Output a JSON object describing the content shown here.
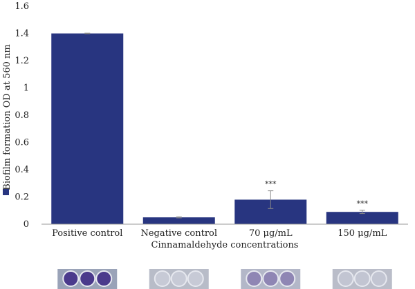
{
  "chart_data": {
    "type": "bar",
    "categories": [
      "Positive control",
      "Negative control",
      "70 μg/mL",
      "150 μg/mL"
    ],
    "values": [
      1.4,
      0.05,
      0.18,
      0.09
    ],
    "errors": [
      0.002,
      0.004,
      0.065,
      0.012
    ],
    "annotations": [
      "",
      "",
      "***",
      "***"
    ],
    "xlabel": "Cinnamaldehyde concentrations",
    "ylabel": "Biofilm formation OD at 560 nm",
    "ylim": [
      0,
      1.6
    ],
    "yticks": [
      0,
      0.2,
      0.4,
      0.6,
      0.8,
      1,
      1.2,
      1.4,
      1.6
    ],
    "grid": false,
    "colors": {
      "bar": "#283580",
      "error": "#888888"
    }
  },
  "wells": [
    {
      "category": "Positive control",
      "shade": "#4b3a8c",
      "background": "#9aa3b8"
    },
    {
      "category": "Negative control",
      "shade": "#c7cad6",
      "background": "#b8bcc8"
    },
    {
      "category": "70 μg/mL",
      "shade": "#8f86b4",
      "background": "#b3b7c8"
    },
    {
      "category": "150 μg/mL",
      "shade": "#c2c5d2",
      "background": "#babdc9"
    }
  ]
}
